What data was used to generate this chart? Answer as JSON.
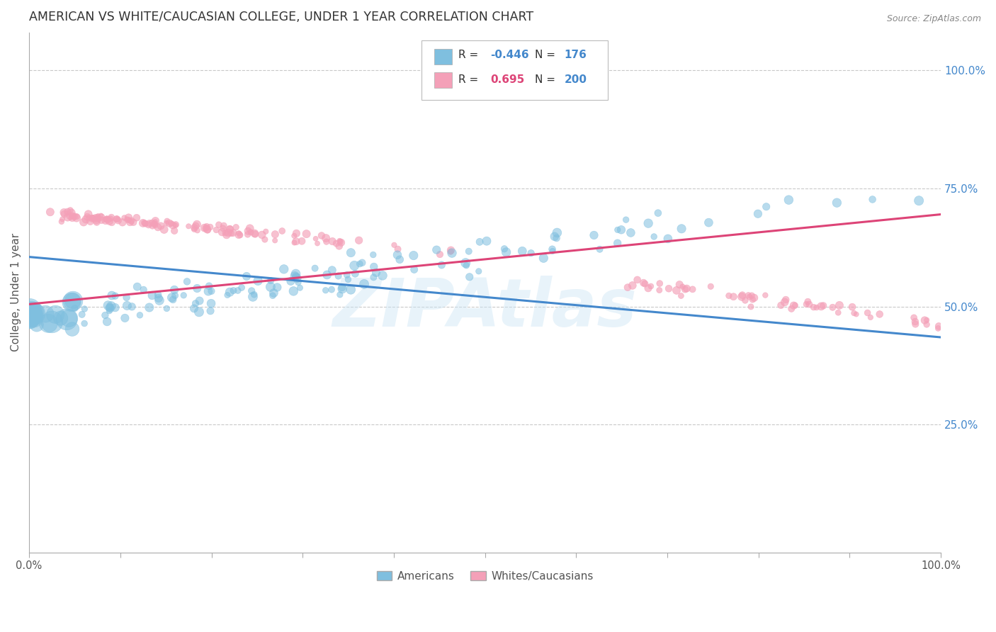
{
  "title": "AMERICAN VS WHITE/CAUCASIAN COLLEGE, UNDER 1 YEAR CORRELATION CHART",
  "source": "Source: ZipAtlas.com",
  "ylabel": "College, Under 1 year",
  "legend_label1": "Americans",
  "legend_label2": "Whites/Caucasians",
  "R_american": -0.446,
  "N_american": 176,
  "R_white": 0.695,
  "N_white": 200,
  "color_american": "#7fbfdf",
  "color_white": "#f4a0b8",
  "color_american_line": "#4488cc",
  "color_white_line": "#dd4477",
  "watermark": "ZIPAtlas",
  "background_color": "#ffffff",
  "grid_color": "#bbbbbb",
  "ytick_labels": [
    "100.0%",
    "75.0%",
    "50.0%",
    "25.0%"
  ],
  "ytick_positions": [
    1.0,
    0.75,
    0.5,
    0.25
  ],
  "xmin": 0.0,
  "xmax": 1.0,
  "ymin": -0.02,
  "ymax": 1.08,
  "title_color": "#333333",
  "tick_color": "#4488cc",
  "legend_R_color_american": "#4488cc",
  "legend_R_color_white": "#dd4477",
  "legend_N_color": "#4488cc"
}
